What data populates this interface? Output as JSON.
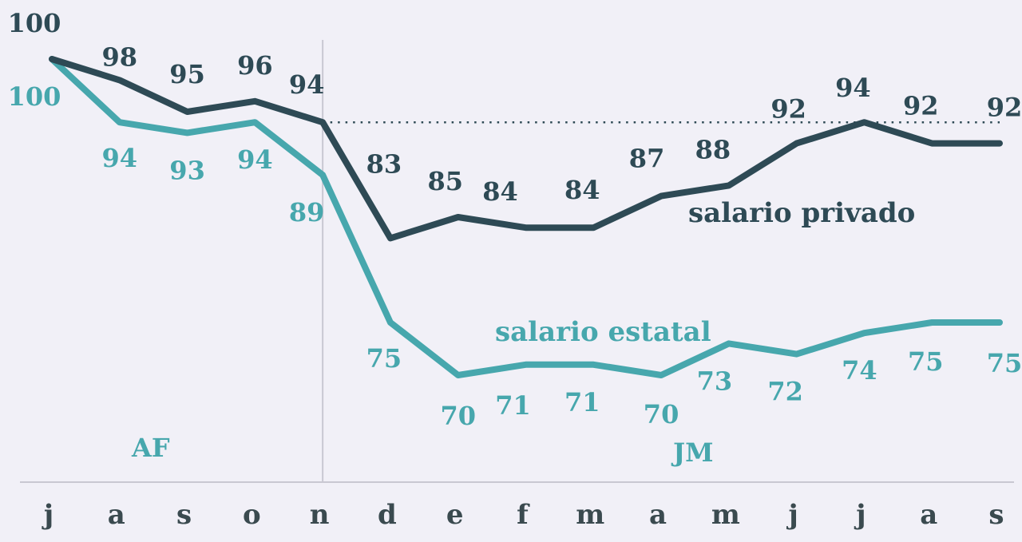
{
  "chart_data": {
    "type": "line",
    "categories": [
      "j",
      "a",
      "s",
      "o",
      "n",
      "d",
      "e",
      "f",
      "m",
      "a",
      "m",
      "j",
      "j",
      "a",
      "s"
    ],
    "series": [
      {
        "name": "salario privado",
        "color": "#2e4a55",
        "values": [
          100,
          98,
          95,
          96,
          94,
          83,
          85,
          84,
          84,
          87,
          88,
          92,
          94,
          92,
          92
        ],
        "labels": [
          "100",
          "98",
          "95",
          "96",
          "94",
          "83",
          "85",
          "84",
          "84",
          "87",
          "88",
          "92",
          "94",
          "92",
          "92"
        ]
      },
      {
        "name": "salario estatal",
        "color": "#47a7ad",
        "values": [
          100,
          94,
          93,
          94,
          89,
          75,
          70,
          71,
          71,
          70,
          73,
          72,
          74,
          75,
          75
        ],
        "labels": [
          "100",
          "94",
          "93",
          "94",
          "89",
          "75",
          "70",
          "71",
          "71",
          "70",
          "73",
          "72",
          "74",
          "75",
          "75"
        ]
      }
    ],
    "reference_line": {
      "value": 94,
      "style": "dotted"
    },
    "period_divider_after_index": 4,
    "periods": [
      {
        "label": "AF",
        "color": "#47a7ad"
      },
      {
        "label": "JM",
        "color": "#47a7ad"
      }
    ],
    "xlabel": "",
    "ylabel": "",
    "grid": false
  }
}
